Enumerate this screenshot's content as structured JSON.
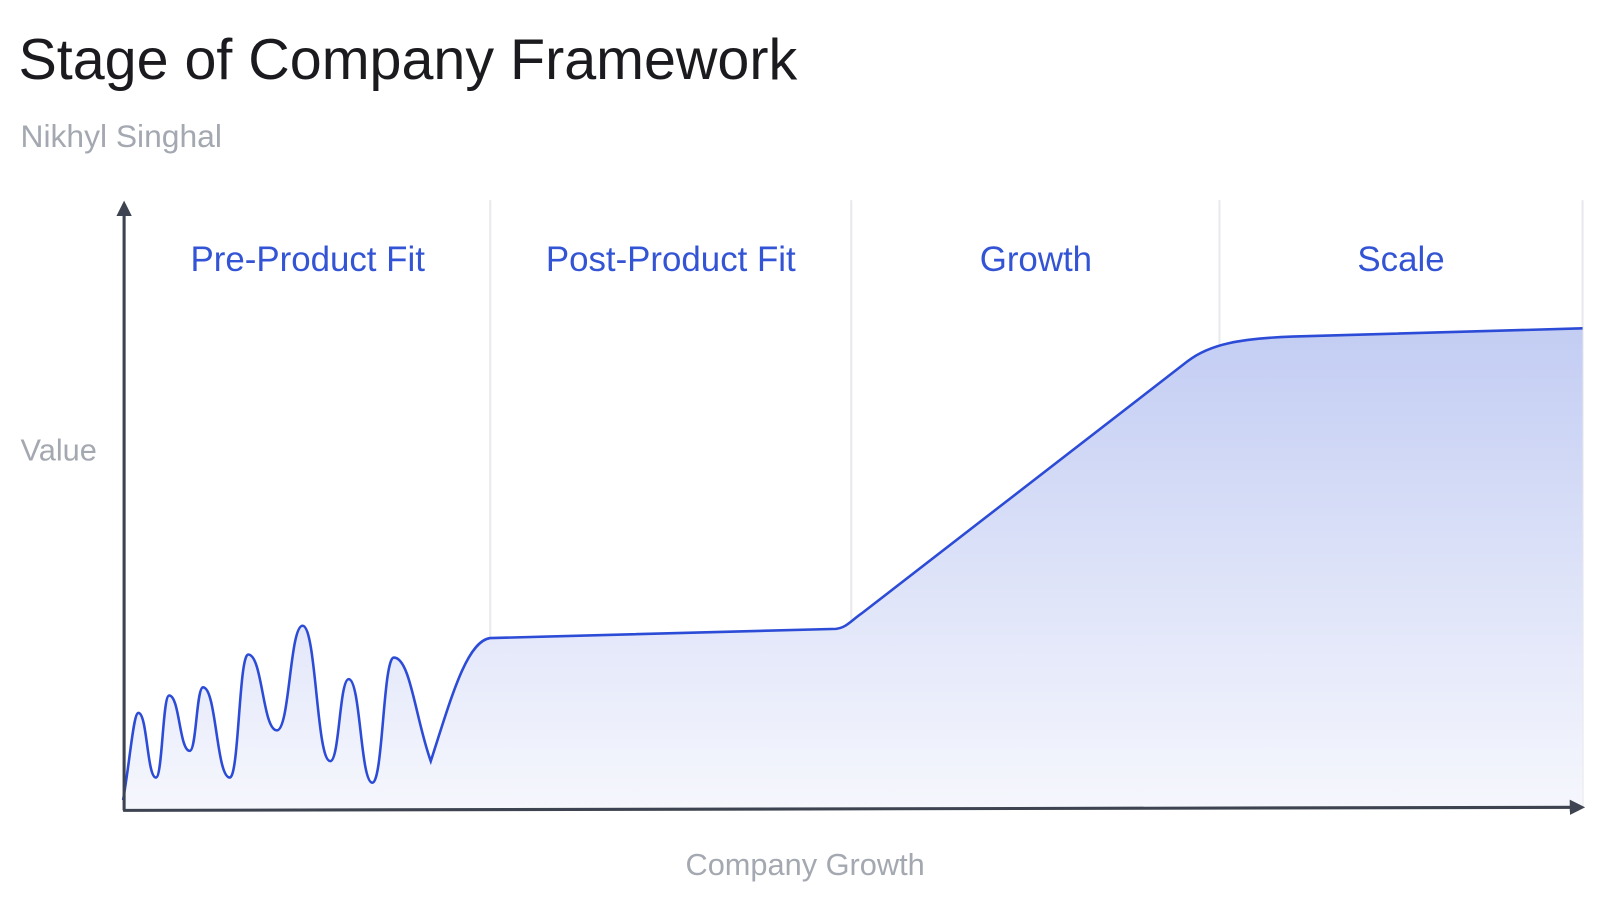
{
  "title": "Stage of Company Framework",
  "subtitle": "Nikhyl Singhal",
  "y_axis_label": "Value",
  "x_axis_label": "Company Growth",
  "stages": [
    "Pre-Product Fit",
    "Post-Product Fit",
    "Growth",
    "Scale"
  ]
}
